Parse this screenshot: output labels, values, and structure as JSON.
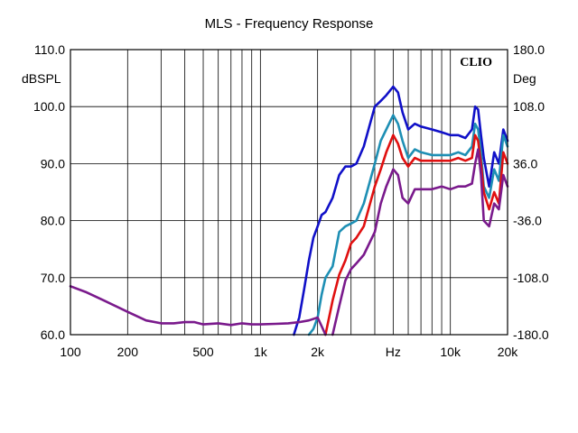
{
  "chart_data": {
    "type": "line",
    "title": "MLS - Frequency Response",
    "brand": "CLIO",
    "xlabel": "Hz",
    "ylabel_left": "dBSPL",
    "ylabel_right": "Deg",
    "x_scale": "log",
    "xlim": [
      100,
      20000
    ],
    "ylim": [
      60,
      110
    ],
    "ylim_right": [
      -180,
      180
    ],
    "x_ticks": [
      {
        "value": 100,
        "label": "100"
      },
      {
        "value": 200,
        "label": "200"
      },
      {
        "value": 500,
        "label": "500"
      },
      {
        "value": 1000,
        "label": "1k"
      },
      {
        "value": 2000,
        "label": "2k"
      },
      {
        "value": 5000,
        "label": "Hz"
      },
      {
        "value": 10000,
        "label": "10k"
      },
      {
        "value": 20000,
        "label": "20k"
      }
    ],
    "x_grid": [
      100,
      200,
      300,
      400,
      500,
      600,
      700,
      800,
      900,
      1000,
      2000,
      3000,
      4000,
      5000,
      6000,
      7000,
      8000,
      9000,
      10000,
      20000
    ],
    "y_ticks": [
      60,
      70,
      80,
      90,
      100,
      110
    ],
    "y_tick_labels": [
      "60.0",
      "70.0",
      "80.0",
      "90.0",
      "100.0",
      "110.0"
    ],
    "y_right_tick_labels": [
      "-180.0",
      "-108.0",
      "-36.0",
      "36.0",
      "108.0",
      "180.0"
    ],
    "grid": true,
    "series": [
      {
        "color": "#1010c8",
        "x": [
          1500,
          1600,
          1700,
          1800,
          1900,
          2000,
          2100,
          2200,
          2400,
          2600,
          2800,
          3000,
          3200,
          3500,
          4000,
          4300,
          4600,
          5000,
          5300,
          5600,
          6000,
          6500,
          7000,
          8000,
          9000,
          10000,
          11000,
          12000,
          13000,
          13500,
          14000,
          14500,
          15000,
          16000,
          17000,
          18000,
          19000,
          20000
        ],
        "y": [
          60,
          63,
          68,
          73,
          77,
          79,
          81,
          81.5,
          84,
          88,
          89.5,
          89.5,
          90,
          93,
          100,
          101,
          102,
          103.5,
          102.5,
          99,
          96,
          97,
          96.5,
          96,
          95.5,
          95,
          95,
          94.5,
          96,
          100,
          99.5,
          95,
          91,
          86,
          92,
          90,
          96,
          94
        ]
      },
      {
        "color": "#1e8fb4",
        "x": [
          1800,
          1900,
          2000,
          2100,
          2200,
          2400,
          2600,
          2800,
          3000,
          3200,
          3500,
          4000,
          4300,
          4600,
          5000,
          5300,
          5600,
          6000,
          6500,
          7000,
          8000,
          9000,
          10000,
          11000,
          12000,
          13000,
          13500,
          14000,
          14500,
          15000,
          16000,
          17000,
          18000,
          19000,
          20000
        ],
        "y": [
          60,
          61,
          63,
          67,
          70,
          72,
          78,
          79,
          79.5,
          80,
          83,
          90,
          94,
          96,
          98.5,
          97,
          94,
          91,
          92.5,
          92,
          91.5,
          91.5,
          91.5,
          92,
          91.5,
          93,
          97,
          96,
          92,
          86,
          84,
          89,
          87,
          95,
          93
        ]
      },
      {
        "color": "#e01010",
        "x": [
          2200,
          2400,
          2600,
          2800,
          3000,
          3200,
          3500,
          4000,
          4300,
          4600,
          5000,
          5300,
          5600,
          6000,
          6500,
          7000,
          8000,
          9000,
          10000,
          11000,
          12000,
          13000,
          13500,
          14000,
          14500,
          15000,
          16000,
          17000,
          18000,
          19000,
          20000
        ],
        "y": [
          60,
          66,
          70.5,
          73,
          76,
          77,
          79,
          86,
          89,
          92,
          95,
          93.5,
          91,
          89.5,
          91,
          90.5,
          90.5,
          90.5,
          90.5,
          91,
          90.5,
          91,
          95,
          94,
          90,
          85,
          82,
          85,
          83,
          92,
          90
        ]
      },
      {
        "color": "#7a1a8c",
        "x": [
          100,
          120,
          150,
          200,
          250,
          300,
          350,
          400,
          450,
          500,
          600,
          700,
          800,
          900,
          1000,
          1200,
          1400,
          1600,
          1800,
          2000,
          2100,
          2200
        ],
        "y": [
          68.5,
          67.5,
          66,
          64,
          62.5,
          62,
          62,
          62.2,
          62.2,
          61.8,
          62,
          61.7,
          62,
          61.8,
          61.8,
          61.9,
          62,
          62.2,
          62.5,
          63,
          61.5,
          60
        ]
      },
      {
        "color": "#7a1a8c",
        "x": [
          2400,
          2600,
          2800,
          3000,
          3200,
          3500,
          4000,
          4300,
          4600,
          5000,
          5300,
          5600,
          6000,
          6500,
          7000,
          8000,
          9000,
          10000,
          11000,
          12000,
          13000,
          13500,
          14000,
          14500,
          15000,
          16000,
          17000,
          18000,
          19000,
          20000
        ],
        "y": [
          60,
          65,
          69.5,
          71.5,
          72.5,
          74,
          78,
          83,
          86,
          89,
          88,
          84,
          83,
          85.5,
          85.5,
          85.5,
          86,
          85.5,
          86,
          86,
          86.5,
          90,
          92.5,
          88,
          80,
          79,
          83,
          82,
          88,
          86
        ]
      }
    ]
  }
}
